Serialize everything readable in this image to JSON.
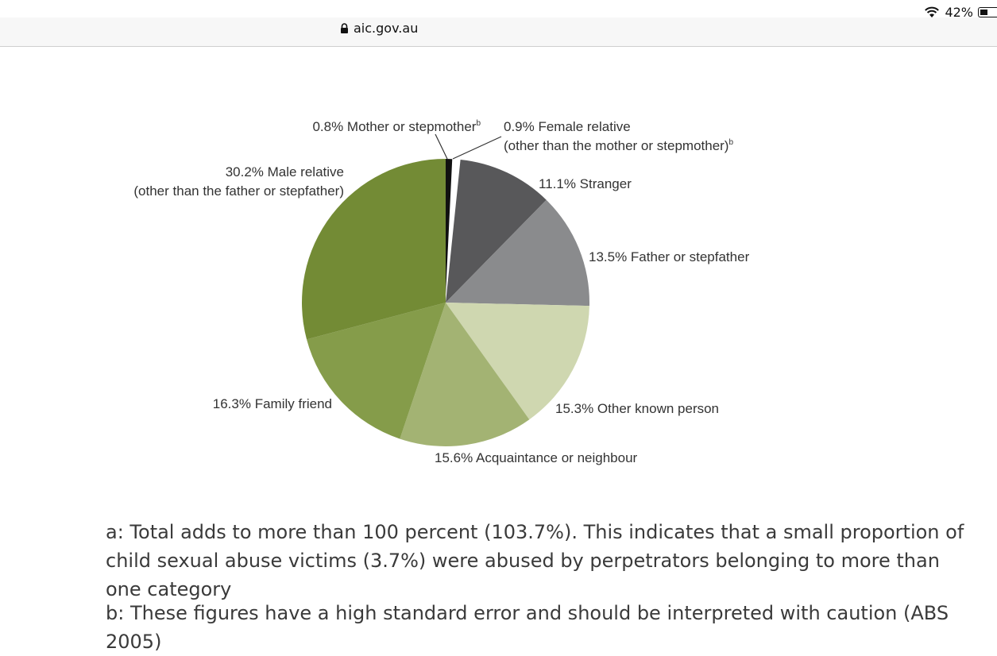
{
  "status": {
    "battery": "42%",
    "icons": [
      "wifi-icon",
      "battery-icon"
    ]
  },
  "browser": {
    "url": "aic.gov.au",
    "icons": [
      "lock-icon"
    ]
  },
  "chart_data": {
    "type": "pie",
    "title": "",
    "start": "top",
    "direction": "clockwise",
    "slices": [
      {
        "label": "Mother or stepmother",
        "sup": "b",
        "value": 0.8,
        "pct": "0.8%",
        "color": "#111111"
      },
      {
        "label": "Female relative",
        "label2": "(other than the mother or stepmother)",
        "sup": "b",
        "value": 0.9,
        "pct": "0.9%",
        "color": "#ffffff"
      },
      {
        "label": "Stranger",
        "value": 11.1,
        "pct": "11.1%",
        "color": "#58585a"
      },
      {
        "label": "Father or stepfather",
        "value": 13.5,
        "pct": "13.5%",
        "color": "#8a8b8d"
      },
      {
        "label": "Other known person",
        "value": 15.3,
        "pct": "15.3%",
        "color": "#cfd7b0"
      },
      {
        "label": "Acquaintance or neighbour",
        "value": 15.6,
        "pct": "15.6%",
        "color": "#a3b373"
      },
      {
        "label": "Family friend",
        "value": 16.3,
        "pct": "16.3%",
        "color": "#859c4a"
      },
      {
        "label": "Male relative",
        "label2": "(other than the father or stepfather)",
        "value": 30.2,
        "pct": "30.2%",
        "color": "#738b35"
      }
    ]
  },
  "footnotes": {
    "a": "a: Total adds to more than 100 percent (103.7%). This indicates that a small proportion of child sexual abuse victims (3.7%) were abused by perpetrators belonging to more than one category",
    "b": "b: These figures have a high standard error and should be interpreted with caution (ABS 2005)"
  }
}
